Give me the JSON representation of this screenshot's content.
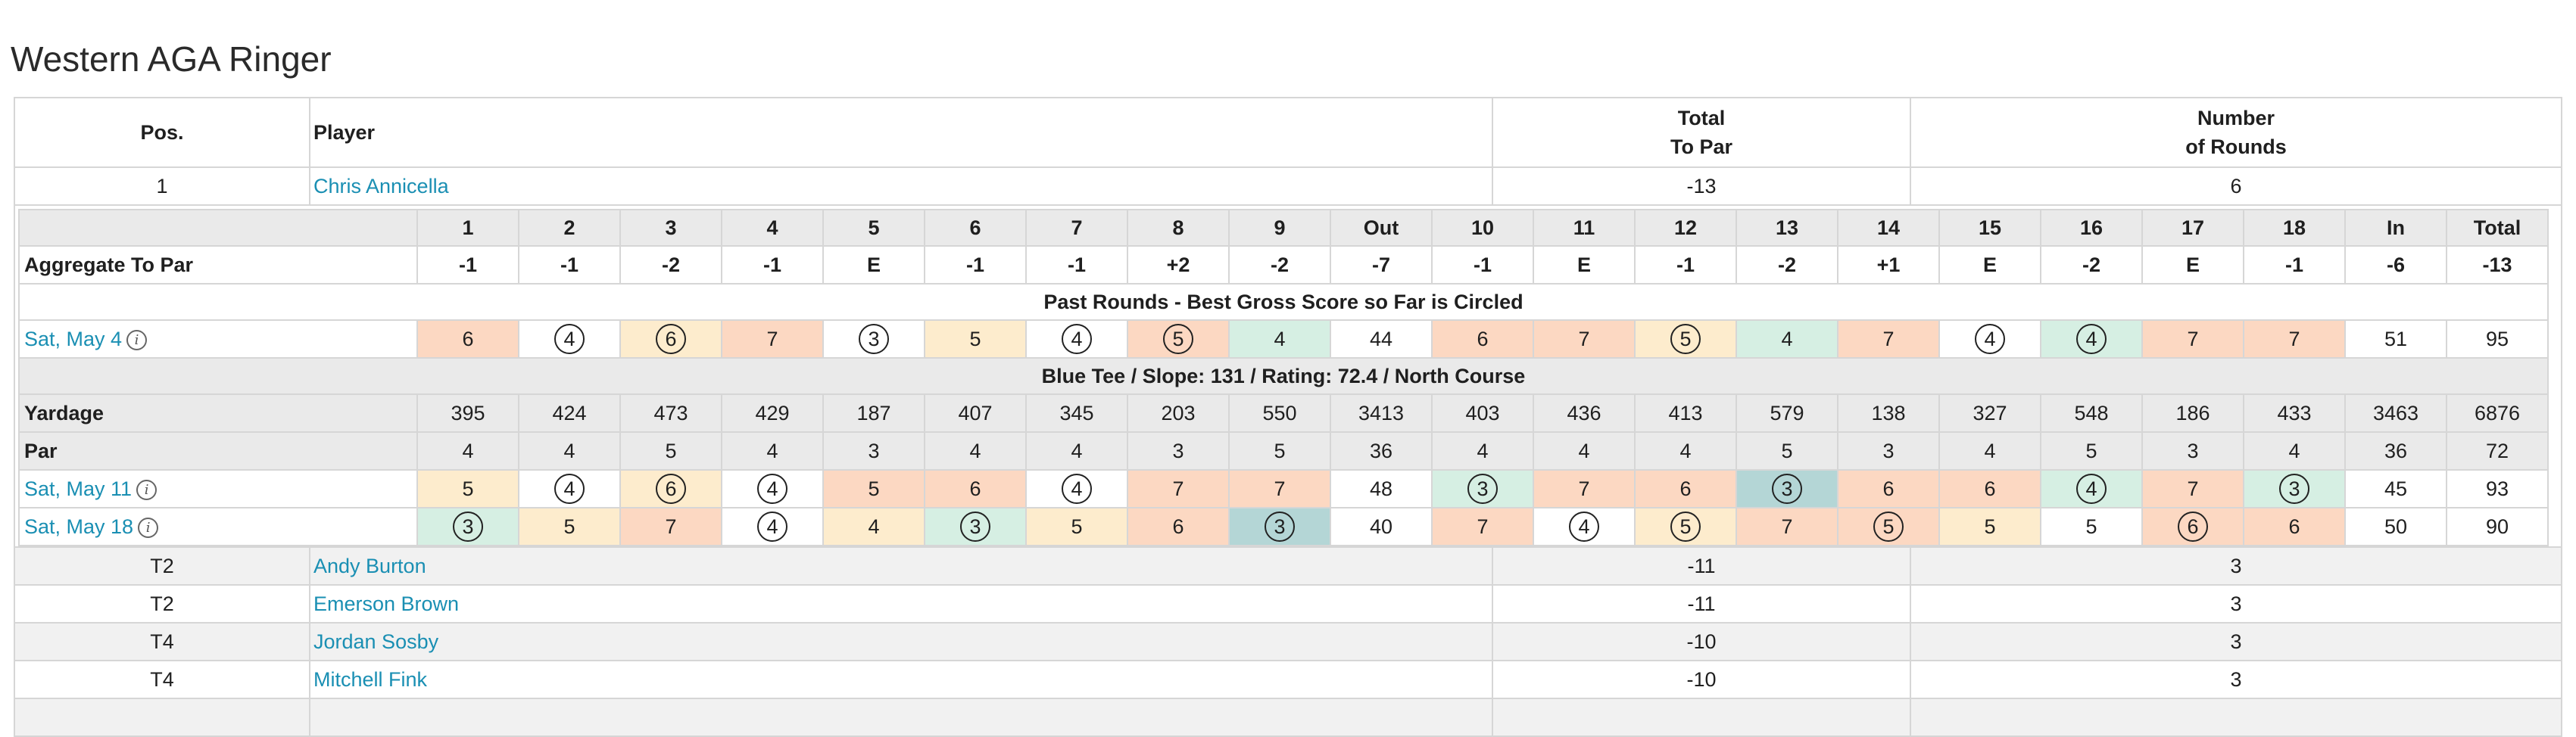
{
  "page_title": "Western AGA Ringer",
  "headers": {
    "pos": "Pos.",
    "player": "Player",
    "total_to_par_line1": "Total",
    "total_to_par_line2": "To Par",
    "rounds_line1": "Number",
    "rounds_line2": "of Rounds"
  },
  "leader": {
    "pos": "1",
    "name": "Chris Annicella",
    "to_par": "-13",
    "rounds": "6"
  },
  "scorecard": {
    "holes": [
      "1",
      "2",
      "3",
      "4",
      "5",
      "6",
      "7",
      "8",
      "9",
      "Out",
      "10",
      "11",
      "12",
      "13",
      "14",
      "15",
      "16",
      "17",
      "18",
      "In",
      "Total"
    ],
    "aggregate_label": "Aggregate To Par",
    "aggregate": [
      "-1",
      "-1",
      "-2",
      "-1",
      "E",
      "-1",
      "-1",
      "+2",
      "-2",
      "-7",
      "-1",
      "E",
      "-1",
      "-2",
      "+1",
      "E",
      "-2",
      "E",
      "-1",
      "-6",
      "-13"
    ],
    "past_banner": "Past Rounds - Best Gross Score so Far is Circled",
    "past_round": {
      "date": "Sat, May 4",
      "scores": [
        "6",
        "4",
        "6",
        "7",
        "3",
        "5",
        "4",
        "5",
        "4",
        "44",
        "6",
        "7",
        "5",
        "4",
        "7",
        "4",
        "4",
        "7",
        "7",
        "51",
        "95"
      ]
    },
    "course_banner": "Blue Tee / Slope: 131 / Rating: 72.4 / North Course",
    "yardage_label": "Yardage",
    "yardage": [
      "395",
      "424",
      "473",
      "429",
      "187",
      "407",
      "345",
      "203",
      "550",
      "3413",
      "403",
      "436",
      "413",
      "579",
      "138",
      "327",
      "548",
      "186",
      "433",
      "3463",
      "6876"
    ],
    "par_label": "Par",
    "par": [
      "4",
      "4",
      "5",
      "4",
      "3",
      "4",
      "4",
      "3",
      "5",
      "36",
      "4",
      "4",
      "4",
      "5",
      "3",
      "4",
      "5",
      "3",
      "4",
      "36",
      "72"
    ],
    "rounds": [
      {
        "date": "Sat, May 11",
        "scores": [
          "5",
          "4",
          "6",
          "4",
          "5",
          "6",
          "4",
          "7",
          "7",
          "48",
          "3",
          "7",
          "6",
          "3",
          "6",
          "6",
          "4",
          "7",
          "3",
          "45",
          "93"
        ]
      },
      {
        "date": "Sat, May 18",
        "scores": [
          "3",
          "5",
          "7",
          "4",
          "4",
          "3",
          "5",
          "6",
          "3",
          "40",
          "7",
          "4",
          "5",
          "7",
          "5",
          "5",
          "5",
          "6",
          "6",
          "50",
          "90"
        ]
      }
    ]
  },
  "others": [
    {
      "pos": "T2",
      "name": "Andy Burton",
      "to_par": "-11",
      "rounds": "3"
    },
    {
      "pos": "T2",
      "name": "Emerson Brown",
      "to_par": "-11",
      "rounds": "3"
    },
    {
      "pos": "T4",
      "name": "Jordan Sosby",
      "to_par": "-10",
      "rounds": "3"
    },
    {
      "pos": "T4",
      "name": "Mitchell Fink",
      "to_par": "-10",
      "rounds": "3"
    }
  ],
  "colors": {
    "link": "#1a8fb3",
    "bogey": "#fdeccd",
    "double_bogey": "#fcd8c2",
    "birdie": "#d6efe3",
    "eagle": "#b4d6d6",
    "header_gray": "#eaeaea"
  },
  "info_icon": "info-circle-icon"
}
